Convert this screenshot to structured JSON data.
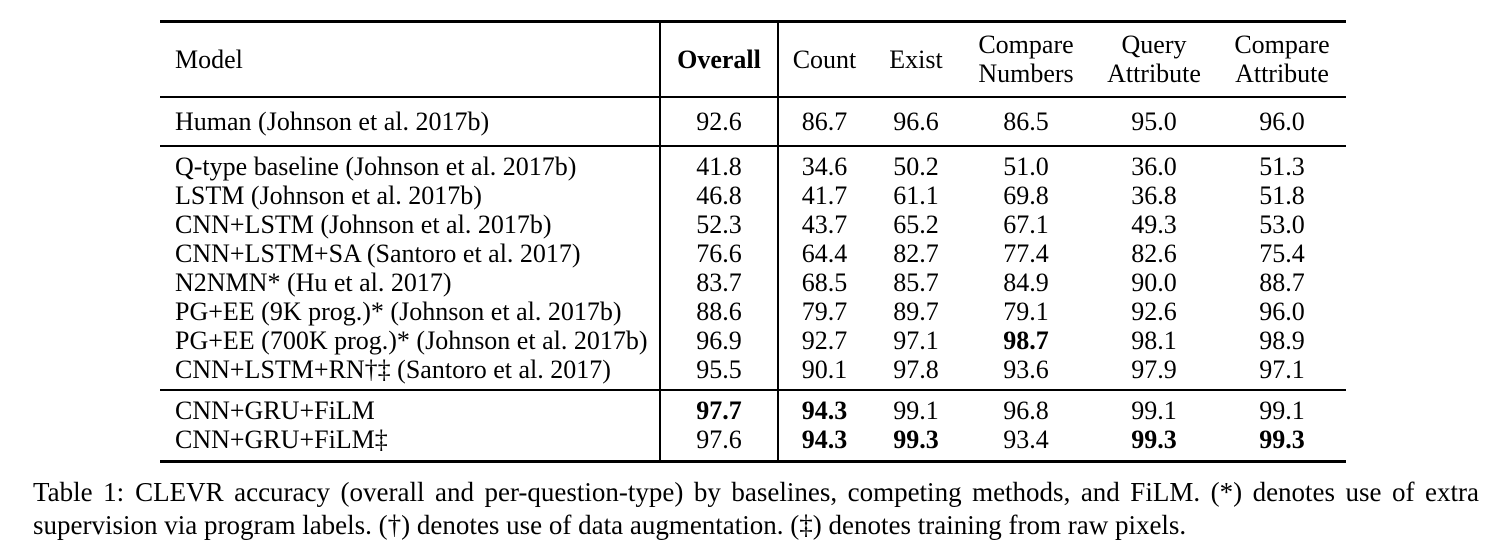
{
  "table": {
    "columns": [
      {
        "key": "model",
        "label": "Model"
      },
      {
        "key": "overall",
        "label": "Overall",
        "bold": true
      },
      {
        "key": "count",
        "label": "Count"
      },
      {
        "key": "exist",
        "label": "Exist"
      },
      {
        "key": "compare_numbers",
        "label": "Compare Numbers"
      },
      {
        "key": "query_attribute",
        "label": "Query Attribute"
      },
      {
        "key": "compare_attribute",
        "label": "Compare Attribute"
      }
    ],
    "sections": [
      {
        "name": "human",
        "rows": [
          {
            "model": "Human (Johnson et al. 2017b)",
            "values": [
              "92.6",
              "86.7",
              "96.6",
              "86.5",
              "95.0",
              "96.0"
            ],
            "bold": [
              false,
              false,
              false,
              false,
              false,
              false
            ]
          }
        ]
      },
      {
        "name": "baselines",
        "rows": [
          {
            "model": "Q-type baseline (Johnson et al. 2017b)",
            "values": [
              "41.8",
              "34.6",
              "50.2",
              "51.0",
              "36.0",
              "51.3"
            ],
            "bold": [
              false,
              false,
              false,
              false,
              false,
              false
            ]
          },
          {
            "model": "LSTM (Johnson et al. 2017b)",
            "values": [
              "46.8",
              "41.7",
              "61.1",
              "69.8",
              "36.8",
              "51.8"
            ],
            "bold": [
              false,
              false,
              false,
              false,
              false,
              false
            ]
          },
          {
            "model": "CNN+LSTM (Johnson et al. 2017b)",
            "values": [
              "52.3",
              "43.7",
              "65.2",
              "67.1",
              "49.3",
              "53.0"
            ],
            "bold": [
              false,
              false,
              false,
              false,
              false,
              false
            ]
          },
          {
            "model": "CNN+LSTM+SA (Santoro et al. 2017)",
            "values": [
              "76.6",
              "64.4",
              "82.7",
              "77.4",
              "82.6",
              "75.4"
            ],
            "bold": [
              false,
              false,
              false,
              false,
              false,
              false
            ]
          },
          {
            "model": "N2NMN* (Hu et al. 2017)",
            "values": [
              "83.7",
              "68.5",
              "85.7",
              "84.9",
              "90.0",
              "88.7"
            ],
            "bold": [
              false,
              false,
              false,
              false,
              false,
              false
            ]
          },
          {
            "model": "PG+EE (9K prog.)* (Johnson et al. 2017b)",
            "values": [
              "88.6",
              "79.7",
              "89.7",
              "79.1",
              "92.6",
              "96.0"
            ],
            "bold": [
              false,
              false,
              false,
              false,
              false,
              false
            ]
          },
          {
            "model": "PG+EE (700K prog.)* (Johnson et al. 2017b)",
            "values": [
              "96.9",
              "92.7",
              "97.1",
              "98.7",
              "98.1",
              "98.9"
            ],
            "bold": [
              false,
              false,
              false,
              true,
              false,
              false
            ]
          },
          {
            "model": "CNN+LSTM+RN†‡ (Santoro et al. 2017)",
            "values": [
              "95.5",
              "90.1",
              "97.8",
              "93.6",
              "97.9",
              "97.1"
            ],
            "bold": [
              false,
              false,
              false,
              false,
              false,
              false
            ]
          }
        ]
      },
      {
        "name": "film",
        "rows": [
          {
            "model": "CNN+GRU+FiLM",
            "values": [
              "97.7",
              "94.3",
              "99.1",
              "96.8",
              "99.1",
              "99.1"
            ],
            "bold": [
              true,
              true,
              false,
              false,
              false,
              false
            ]
          },
          {
            "model": "CNN+GRU+FiLM‡",
            "values": [
              "97.6",
              "94.3",
              "99.3",
              "93.4",
              "99.3",
              "99.3"
            ],
            "bold": [
              false,
              true,
              true,
              false,
              true,
              true
            ]
          }
        ]
      }
    ]
  },
  "caption": {
    "label": "Table 1:",
    "text": "CLEVR accuracy (overall and per-question-type) by baselines, competing methods, and FiLM. (*) denotes use of extra supervision via program labels. (†) denotes use of data augmentation. (‡) denotes training from raw pixels."
  },
  "colors": {
    "text": "#000000",
    "background": "#ffffff",
    "rule": "#000000"
  }
}
